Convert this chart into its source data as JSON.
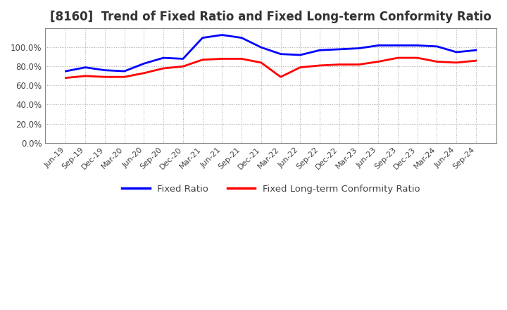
{
  "title": "[8160]  Trend of Fixed Ratio and Fixed Long-term Conformity Ratio",
  "title_fontsize": 12,
  "x_labels": [
    "Jun-19",
    "Sep-19",
    "Dec-19",
    "Mar-20",
    "Jun-20",
    "Sep-20",
    "Dec-20",
    "Mar-21",
    "Jun-21",
    "Sep-21",
    "Dec-21",
    "Mar-22",
    "Jun-22",
    "Sep-22",
    "Dec-22",
    "Mar-23",
    "Jun-23",
    "Sep-23",
    "Dec-23",
    "Mar-24",
    "Jun-24",
    "Sep-24"
  ],
  "fixed_ratio": [
    75.0,
    79.0,
    76.0,
    75.0,
    83.0,
    89.0,
    88.0,
    110.0,
    113.0,
    110.0,
    100.0,
    93.0,
    92.0,
    97.0,
    98.0,
    99.0,
    102.0,
    102.0,
    102.0,
    101.0,
    95.0,
    97.0
  ],
  "fixed_lt_ratio": [
    68.0,
    70.0,
    69.0,
    69.0,
    73.0,
    78.0,
    80.0,
    87.0,
    88.0,
    88.0,
    84.0,
    69.0,
    79.0,
    81.0,
    82.0,
    82.0,
    85.0,
    89.0,
    89.0,
    85.0,
    84.0,
    86.0
  ],
  "fixed_ratio_color": "#0000ff",
  "fixed_lt_ratio_color": "#ff0000",
  "ylim": [
    0.0,
    120.0
  ],
  "ytick_vals": [
    0.0,
    20.0,
    40.0,
    60.0,
    80.0,
    100.0
  ],
  "grid_color": "#aaaaaa",
  "bg_color": "#ffffff",
  "plot_bg_color": "#ffffff",
  "legend_fixed": "Fixed Ratio",
  "legend_fixed_lt": "Fixed Long-term Conformity Ratio"
}
